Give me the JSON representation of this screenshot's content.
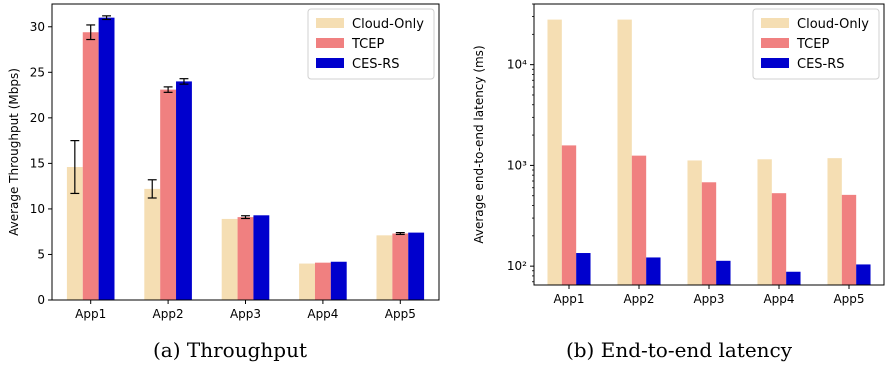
{
  "colors": {
    "cloud_only": "#f5deb3",
    "tcep": "#f08080",
    "ces_rs": "#0000cd"
  },
  "chart_data": [
    {
      "type": "bar",
      "caption": "(a) Throughput",
      "ylabel": "Average Throughput (Mbps)",
      "xlabel": "",
      "yscale": "linear",
      "ylim": [
        0,
        32.5
      ],
      "yticks": [
        0,
        5,
        10,
        15,
        20,
        25,
        30
      ],
      "ytick_labels": [
        "0",
        "5",
        "10",
        "15",
        "20",
        "25",
        "30"
      ],
      "categories": [
        "App1",
        "App2",
        "App3",
        "App4",
        "App5"
      ],
      "legend_position": "top-right",
      "grid": false,
      "series": [
        {
          "name": "Cloud-Only",
          "color_key": "cloud_only",
          "values": [
            14.6,
            12.2,
            8.9,
            4.0,
            7.1
          ],
          "errors": [
            2.9,
            1.0,
            0,
            0,
            0
          ]
        },
        {
          "name": "TCEP",
          "color_key": "tcep",
          "values": [
            29.4,
            23.1,
            9.1,
            4.1,
            7.3
          ],
          "errors": [
            0.8,
            0.3,
            0.15,
            0,
            0.1
          ]
        },
        {
          "name": "CES-RS",
          "color_key": "ces_rs",
          "values": [
            31.0,
            24.0,
            9.3,
            4.2,
            7.4
          ],
          "errors": [
            0.2,
            0.3,
            0,
            0,
            0
          ]
        }
      ]
    },
    {
      "type": "bar",
      "caption": "(b) End-to-end latency",
      "ylabel": "Average end-to-end latency (ms)",
      "xlabel": "",
      "yscale": "log",
      "ylim": [
        65,
        40000
      ],
      "yticks": [
        100,
        1000,
        10000
      ],
      "ytick_labels": [
        "10²",
        "10³",
        "10⁴"
      ],
      "categories": [
        "App1",
        "App2",
        "App3",
        "App4",
        "App5"
      ],
      "legend_position": "top-right",
      "grid": false,
      "series": [
        {
          "name": "Cloud-Only",
          "color_key": "cloud_only",
          "values": [
            28000,
            28000,
            1120,
            1150,
            1180
          ]
        },
        {
          "name": "TCEP",
          "color_key": "tcep",
          "values": [
            1580,
            1250,
            680,
            530,
            510
          ]
        },
        {
          "name": "CES-RS",
          "color_key": "ces_rs",
          "values": [
            135,
            122,
            113,
            88,
            104
          ]
        }
      ]
    }
  ]
}
